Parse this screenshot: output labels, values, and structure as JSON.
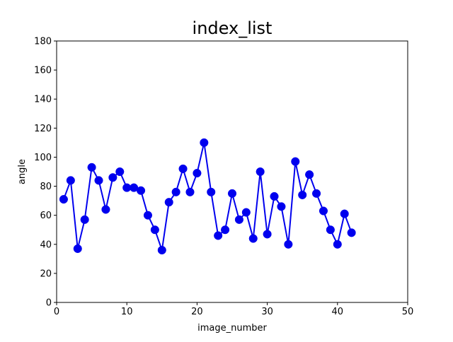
{
  "chart_data": {
    "type": "line",
    "title": "index_list",
    "xlabel": "image_number",
    "ylabel": "angle",
    "xlim": [
      0,
      50
    ],
    "ylim": [
      0,
      180
    ],
    "xticks": [
      0,
      10,
      20,
      30,
      40,
      50
    ],
    "yticks": [
      0,
      20,
      40,
      60,
      80,
      100,
      120,
      140,
      160,
      180
    ],
    "grid": false,
    "legend": false,
    "series": [
      {
        "color": "#0000ee",
        "marker": "circle",
        "x": [
          1,
          2,
          3,
          4,
          5,
          6,
          7,
          8,
          9,
          10,
          11,
          12,
          13,
          14,
          15,
          16,
          17,
          18,
          19,
          20,
          21,
          22,
          23,
          24,
          25,
          26,
          27,
          28,
          29,
          30,
          31,
          32,
          33,
          34,
          35,
          36,
          37,
          38,
          39,
          40,
          41,
          42
        ],
        "y": [
          71,
          84,
          37,
          57,
          93,
          84,
          64,
          86,
          90,
          79,
          79,
          77,
          60,
          50,
          36,
          69,
          76,
          92,
          76,
          89,
          110,
          76,
          46,
          50,
          75,
          57,
          62,
          44,
          90,
          47,
          73,
          66,
          40,
          97,
          74,
          88,
          75,
          63,
          50,
          40,
          61,
          48
        ]
      }
    ]
  }
}
